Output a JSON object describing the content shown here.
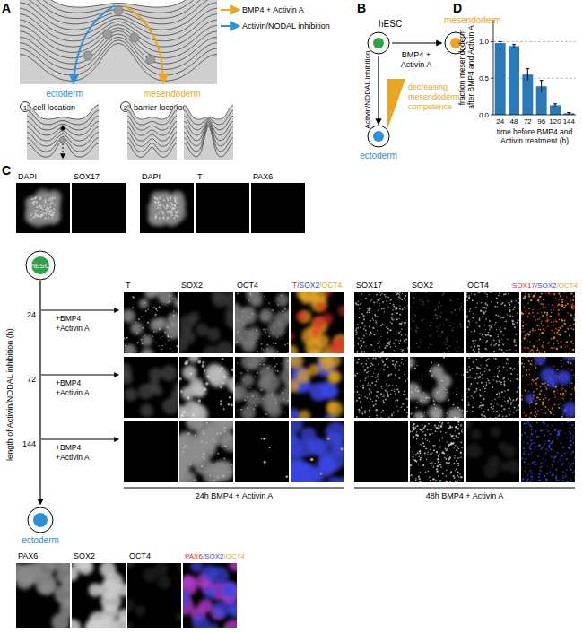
{
  "panel_labels": [
    "A",
    "B",
    "C",
    "D"
  ],
  "panel_a": {
    "legend": [
      {
        "label": "BMP4 + Activin A",
        "color": "#e8a623"
      },
      {
        "label": "Activin/NODAL inhibition",
        "color": "#2f8fd8"
      }
    ],
    "fates": [
      {
        "label": "ectoderm",
        "color": "#2f8fd8"
      },
      {
        "label": "mesendoderm",
        "color": "#e8a623"
      }
    ],
    "mechanisms": [
      {
        "number": "1",
        "label": "cell location"
      },
      {
        "number": "2",
        "label": "barrier location"
      }
    ]
  },
  "panel_b": {
    "start": "hESC",
    "treatment": [
      "BMP4 +",
      "Activin A"
    ],
    "mesendoderm": "mesendoderm",
    "inhibition": "Activin/NODAL inhibition",
    "ectoderm": "ectoderm",
    "competence": [
      "decreasing",
      "mesendoderm",
      "competence"
    ]
  },
  "panel_c": {
    "controls": [
      "DAPI",
      "SOX17",
      "DAPI",
      "T",
      "PAX6"
    ],
    "start": "hESC",
    "axis_label": "length of Activin/NODAL inhibition (h)",
    "durations": [
      "24",
      "72",
      "144"
    ],
    "treatment": [
      "+BMP4",
      "+Activin A"
    ],
    "grid_24h": {
      "columns": [
        "T",
        "SOX2",
        "OCT4"
      ],
      "merge": [
        {
          "text": "T",
          "color": "#e02a2a"
        },
        {
          "text": "/SOX2",
          "color": "#3a46e0"
        },
        {
          "text": "/OCT4",
          "color": "#e8a623"
        }
      ],
      "caption": "24h BMP4 + Activin A"
    },
    "grid_48h": {
      "columns": [
        "SOX17",
        "SOX2",
        "OCT4"
      ],
      "merge": [
        {
          "text": "SOX17",
          "color": "#e02a2a"
        },
        {
          "text": "/SOX2",
          "color": "#3a46e0"
        },
        {
          "text": "/OCT4",
          "color": "#e8a623"
        }
      ],
      "caption": "48h BMP4 + Activin A"
    },
    "end": "ectoderm",
    "ectoderm_row": {
      "columns": [
        "PAX6",
        "SOX2",
        "OCT4"
      ],
      "merge": [
        {
          "text": "PAX6",
          "color": "#e02a2a"
        },
        {
          "text": "/SOX2",
          "color": "#3a46e0"
        },
        {
          "text": "/OCT4",
          "color": "#e8a623"
        }
      ]
    }
  },
  "chart_data": {
    "type": "bar",
    "categories": [
      "24",
      "48",
      "72",
      "96",
      "120",
      "144"
    ],
    "values": [
      0.98,
      0.94,
      0.55,
      0.39,
      0.13,
      0.02
    ],
    "errors": [
      0.02,
      0.02,
      0.08,
      0.08,
      0.02,
      0.01
    ],
    "color": "#2a7ab9",
    "ylabel": [
      "fraction mesendoderm",
      "after BMP4 and Activin A"
    ],
    "xlabel": [
      "time before BMP4 and",
      "Activin treatment (h)"
    ],
    "ylim": [
      0,
      1.3
    ],
    "yticks": [
      {
        "value": 0,
        "label": "0.0"
      },
      {
        "value": 0.5,
        "label": "0.5"
      },
      {
        "value": 1,
        "label": "1.0"
      }
    ],
    "grid": true
  }
}
